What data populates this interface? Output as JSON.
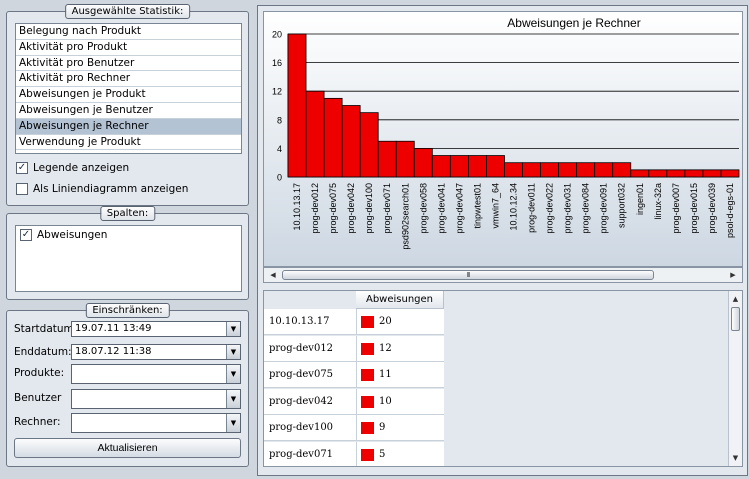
{
  "statistics_group": {
    "title": "Ausgewählte Statistik:",
    "items": [
      {
        "label": "Belegung nach Produkt",
        "selected": false
      },
      {
        "label": "Aktivität pro Produkt",
        "selected": false
      },
      {
        "label": "Aktivität pro Benutzer",
        "selected": false
      },
      {
        "label": "Aktivität pro Rechner",
        "selected": false
      },
      {
        "label": "Abweisungen je Produkt",
        "selected": false
      },
      {
        "label": "Abweisungen je Benutzer",
        "selected": false
      },
      {
        "label": "Abweisungen je Rechner",
        "selected": true
      },
      {
        "label": "Verwendung je Produkt",
        "selected": false
      }
    ],
    "show_legend": {
      "label": "Legende anzeigen",
      "checked": true
    },
    "line_chart": {
      "label": "Als Liniendiagramm anzeigen",
      "checked": false
    }
  },
  "columns_group": {
    "title": "Spalten:",
    "items": [
      {
        "label": "Abweisungen",
        "checked": true
      }
    ]
  },
  "filter_group": {
    "title": "Einschränken:",
    "start_label": "Startdatum:",
    "start_value": "19.07.11 13:49",
    "end_label": "Enddatum:",
    "end_value": "18.07.12 11:38",
    "products_label": "Produkte:",
    "products_value": "",
    "user_label": "Benutzer",
    "user_value": "",
    "host_label": "Rechner:",
    "host_value": "",
    "refresh_label": "Aktualisieren"
  },
  "colors": {
    "bar": "#ee0000",
    "selection": "#b3c3d4"
  },
  "chart_data": {
    "type": "bar",
    "title": "Abweisungen je Rechner",
    "xlabel": "",
    "ylabel": "",
    "ylim": [
      0,
      20
    ],
    "yticks": [
      0,
      4,
      8,
      12,
      16,
      20
    ],
    "grid": true,
    "categories": [
      "10.10.13.17",
      "prog-dev012",
      "prog-dev075",
      "prog-dev042",
      "prog-dev100",
      "prog-dev071",
      "psd902search01",
      "prog-dev058",
      "prog-dev041",
      "prog-dev047",
      "tinpwtest01",
      "vmwin7_64",
      "10.10.12.34",
      "prog-dev011",
      "prog-dev022",
      "prog-dev031",
      "prog-dev084",
      "prog-dev091",
      "support032",
      "ingen01",
      "linux-32a",
      "prog-dev007",
      "prog-dev015",
      "prog-dev039",
      "psol-d-egs-01"
    ],
    "values": [
      20,
      12,
      11,
      10,
      9,
      5,
      5,
      4,
      3,
      3,
      3,
      3,
      2,
      2,
      2,
      2,
      2,
      2,
      2,
      1,
      1,
      1,
      1,
      1,
      1
    ]
  },
  "table": {
    "header": "Abweisungen",
    "scroll_glyph": "III",
    "rows": [
      {
        "label": "10.10.13.17",
        "value": "20"
      },
      {
        "label": "prog-dev012",
        "value": "12"
      },
      {
        "label": "prog-dev075",
        "value": "11"
      },
      {
        "label": "prog-dev042",
        "value": "10"
      },
      {
        "label": "prog-dev100",
        "value": "9"
      },
      {
        "label": "prog-dev071",
        "value": "5"
      }
    ]
  }
}
